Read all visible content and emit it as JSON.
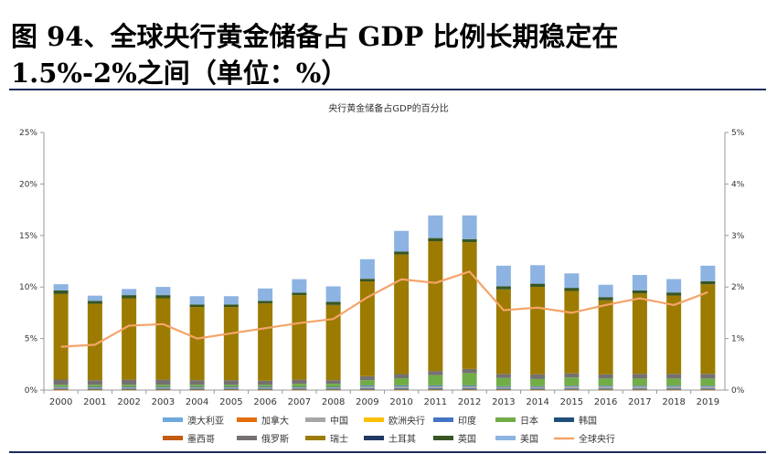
{
  "header": {
    "title_line1": "图 94、全球央行黄金储备占 GDP 比例长期稳定在",
    "title_line2": "1.5%-2%之间（单位：%）"
  },
  "chart_data": {
    "type": "bar",
    "title": "央行黄金储备占GDP的百分比",
    "categories": [
      "2000",
      "2001",
      "2002",
      "2003",
      "2004",
      "2005",
      "2006",
      "2007",
      "2008",
      "2009",
      "2010",
      "2011",
      "2012",
      "2013",
      "2014",
      "2015",
      "2016",
      "2017",
      "2018",
      "2019"
    ],
    "y_left": {
      "ylim": [
        0,
        25
      ],
      "ticks": [
        0,
        5,
        10,
        15,
        20,
        25
      ],
      "tick_labels": [
        "0%",
        "5%",
        "10%",
        "15%",
        "20%",
        "25%"
      ]
    },
    "y_right": {
      "ylim": [
        0,
        5
      ],
      "ticks": [
        0,
        1,
        2,
        3,
        4,
        5
      ],
      "tick_labels": [
        "0%",
        "1%",
        "2%",
        "3%",
        "4%",
        "5%"
      ]
    },
    "grid": false,
    "legend_position": "bottom",
    "stack_order": [
      "墨西哥",
      "加拿大",
      "欧洲央行",
      "韩国",
      "土耳其",
      "澳大利亚",
      "中国",
      "印度",
      "日本",
      "俄罗斯",
      "瑞士",
      "英国",
      "美国"
    ],
    "series": [
      {
        "name": "澳大利亚",
        "color": "#6fa8dc",
        "values": [
          0.02,
          0.02,
          0.02,
          0.02,
          0.02,
          0.02,
          0.02,
          0.02,
          0.02,
          0.03,
          0.03,
          0.03,
          0.03,
          0.02,
          0.02,
          0.02,
          0.02,
          0.02,
          0.02,
          0.02
        ]
      },
      {
        "name": "加拿大",
        "color": "#e46c0a",
        "values": [
          0.01,
          0,
          0,
          0,
          0,
          0,
          0,
          0,
          0,
          0,
          0,
          0,
          0,
          0,
          0,
          0,
          0,
          0,
          0,
          0
        ]
      },
      {
        "name": "中国",
        "color": "#a6a6a6",
        "values": [
          0.1,
          0.1,
          0.1,
          0.1,
          0.1,
          0.1,
          0.1,
          0.1,
          0.1,
          0.2,
          0.2,
          0.2,
          0.2,
          0.15,
          0.15,
          0.2,
          0.2,
          0.2,
          0.2,
          0.2
        ]
      },
      {
        "name": "欧洲央行",
        "color": "#ffc000",
        "values": [
          0.05,
          0.05,
          0.05,
          0.05,
          0.05,
          0.05,
          0.05,
          0.05,
          0.05,
          0.05,
          0.05,
          0.05,
          0.05,
          0.05,
          0.05,
          0.05,
          0.05,
          0.05,
          0.05,
          0.05
        ]
      },
      {
        "name": "印度",
        "color": "#4472c4",
        "values": [
          0.05,
          0.05,
          0.05,
          0.05,
          0.05,
          0.05,
          0.05,
          0.05,
          0.05,
          0.08,
          0.08,
          0.08,
          0.08,
          0.06,
          0.06,
          0.06,
          0.06,
          0.06,
          0.06,
          0.06
        ]
      },
      {
        "name": "日本",
        "color": "#70ad47",
        "values": [
          0.2,
          0.2,
          0.2,
          0.2,
          0.2,
          0.2,
          0.2,
          0.3,
          0.3,
          0.5,
          0.7,
          1.0,
          1.2,
          0.8,
          0.7,
          0.8,
          0.7,
          0.7,
          0.7,
          0.7
        ]
      },
      {
        "name": "韩国",
        "color": "#1f4e79",
        "values": [
          0.02,
          0.02,
          0.02,
          0.02,
          0.02,
          0.02,
          0.02,
          0.02,
          0.02,
          0.02,
          0.02,
          0.02,
          0.02,
          0.02,
          0.02,
          0.02,
          0.02,
          0.02,
          0.02,
          0.02
        ]
      },
      {
        "name": "墨西哥",
        "color": "#c55a11",
        "values": [
          0.02,
          0.02,
          0.02,
          0.02,
          0.02,
          0.02,
          0.02,
          0.02,
          0.02,
          0.02,
          0.02,
          0.02,
          0.02,
          0.02,
          0.02,
          0.02,
          0.02,
          0.02,
          0.02,
          0.02
        ]
      },
      {
        "name": "俄罗斯",
        "color": "#767171",
        "values": [
          0.5,
          0.45,
          0.5,
          0.5,
          0.45,
          0.45,
          0.4,
          0.4,
          0.35,
          0.4,
          0.4,
          0.4,
          0.4,
          0.4,
          0.45,
          0.4,
          0.4,
          0.45,
          0.45,
          0.45
        ]
      },
      {
        "name": "瑞士",
        "color": "#9c7b00",
        "values": [
          8.3,
          7.4,
          7.9,
          7.9,
          7.1,
          7.1,
          7.5,
          8.2,
          7.3,
          9.2,
          11.6,
          12.6,
          12.3,
          8.2,
          8.5,
          8.0,
          7.2,
          7.8,
          7.6,
          8.7
        ]
      },
      {
        "name": "土耳其",
        "color": "#203864",
        "values": [
          0.05,
          0.05,
          0.05,
          0.05,
          0.05,
          0.05,
          0.05,
          0.05,
          0.05,
          0.05,
          0.05,
          0.05,
          0.05,
          0.05,
          0.05,
          0.05,
          0.05,
          0.05,
          0.05,
          0.05
        ]
      },
      {
        "name": "英国",
        "color": "#375623",
        "values": [
          0.35,
          0.3,
          0.3,
          0.3,
          0.25,
          0.25,
          0.25,
          0.25,
          0.3,
          0.25,
          0.3,
          0.3,
          0.3,
          0.3,
          0.3,
          0.3,
          0.3,
          0.3,
          0.3,
          0.3
        ]
      },
      {
        "name": "美国",
        "color": "#8db3e2",
        "values": [
          0.6,
          0.5,
          0.6,
          0.8,
          0.8,
          0.8,
          1.2,
          1.3,
          1.5,
          1.9,
          2.0,
          2.2,
          2.3,
          2.0,
          1.8,
          1.4,
          1.2,
          1.5,
          1.3,
          1.5
        ]
      }
    ],
    "line": {
      "name": "全球央行",
      "color": "#f4a46a",
      "axis": "right",
      "values": [
        0.84,
        0.88,
        1.25,
        1.28,
        1.0,
        1.1,
        1.2,
        1.3,
        1.38,
        1.8,
        2.15,
        2.08,
        2.3,
        1.55,
        1.6,
        1.5,
        1.65,
        1.78,
        1.65,
        1.9
      ]
    },
    "legend_rows": [
      [
        "澳大利亚",
        "加拿大",
        "中国",
        "欧洲央行",
        "印度",
        "日本",
        "韩国"
      ],
      [
        "墨西哥",
        "俄罗斯",
        "瑞士",
        "土耳其",
        "英国",
        "美国",
        "全球央行"
      ]
    ]
  }
}
